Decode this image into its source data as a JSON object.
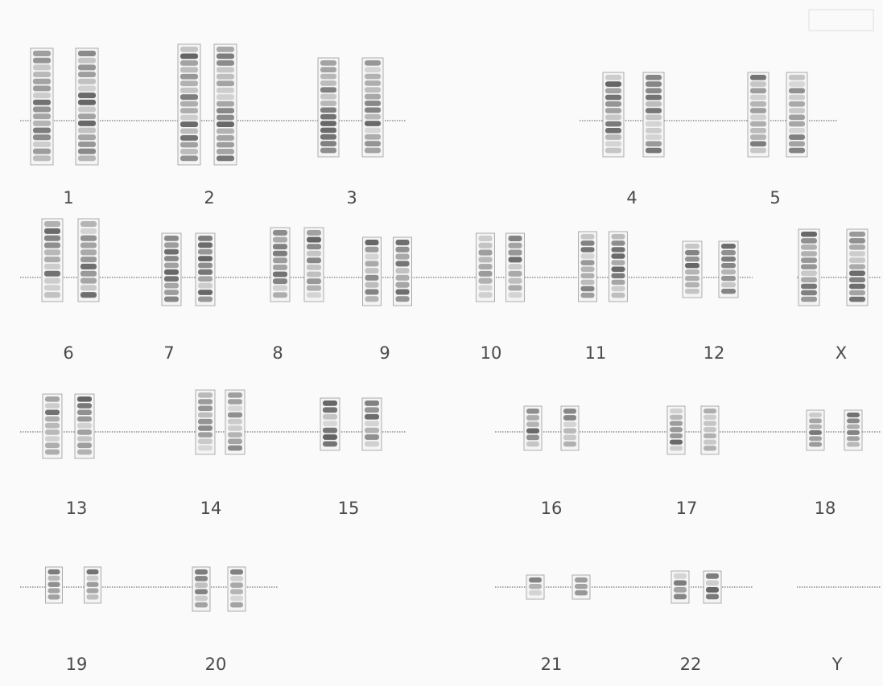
{
  "labels": [
    "1",
    "2",
    "3",
    "4",
    "5",
    "6",
    "7",
    "8",
    "9",
    "10",
    "11",
    "12",
    "X",
    "13",
    "14",
    "15",
    "16",
    "17",
    "18",
    "19",
    "20",
    "21",
    "22",
    "Y"
  ]
}
